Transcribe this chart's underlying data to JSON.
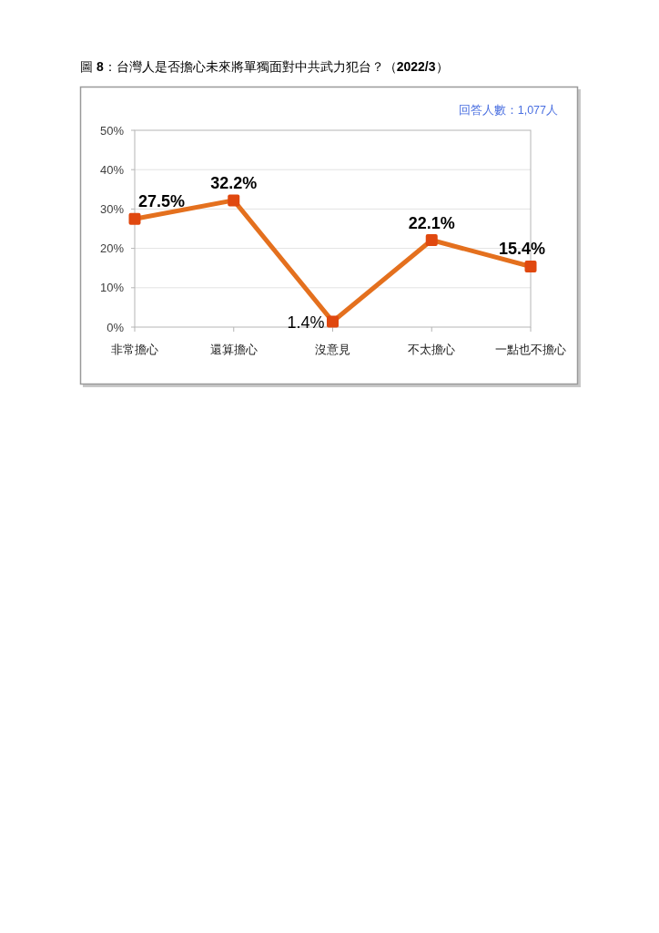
{
  "chart_data": {
    "type": "line",
    "title": "圖 8：台灣人是否擔心未來將單獨面對中共武力犯台？（2022/3）",
    "annotations": [
      "回答人數：1,077人"
    ],
    "categories": [
      "非常擔心",
      "還算擔心",
      "沒意見",
      "不太擔心",
      "一點也不擔心"
    ],
    "series": [
      {
        "color": "#e4701e",
        "colors": [
          "#e0480f",
          "#e0480f",
          "#e0480f",
          "#e0480f",
          "#e0480f"
        ],
        "values": [
          27.5,
          32.2,
          1.4,
          22.1,
          15.4
        ],
        "value_labels": [
          "27.5%",
          "32.2%",
          "1.4%",
          "22.1%",
          "15.4%"
        ]
      }
    ],
    "ylim": [
      0,
      50
    ],
    "yticks": [
      {
        "value": 0,
        "label": "0%"
      },
      {
        "value": 10,
        "label": "10%"
      },
      {
        "value": 20,
        "label": "20%"
      },
      {
        "value": 30,
        "label": "30%"
      },
      {
        "value": 40,
        "label": "40%"
      },
      {
        "value": 50,
        "label": "50%"
      }
    ],
    "grid": "y",
    "marker": "square",
    "line_style": "solid"
  }
}
